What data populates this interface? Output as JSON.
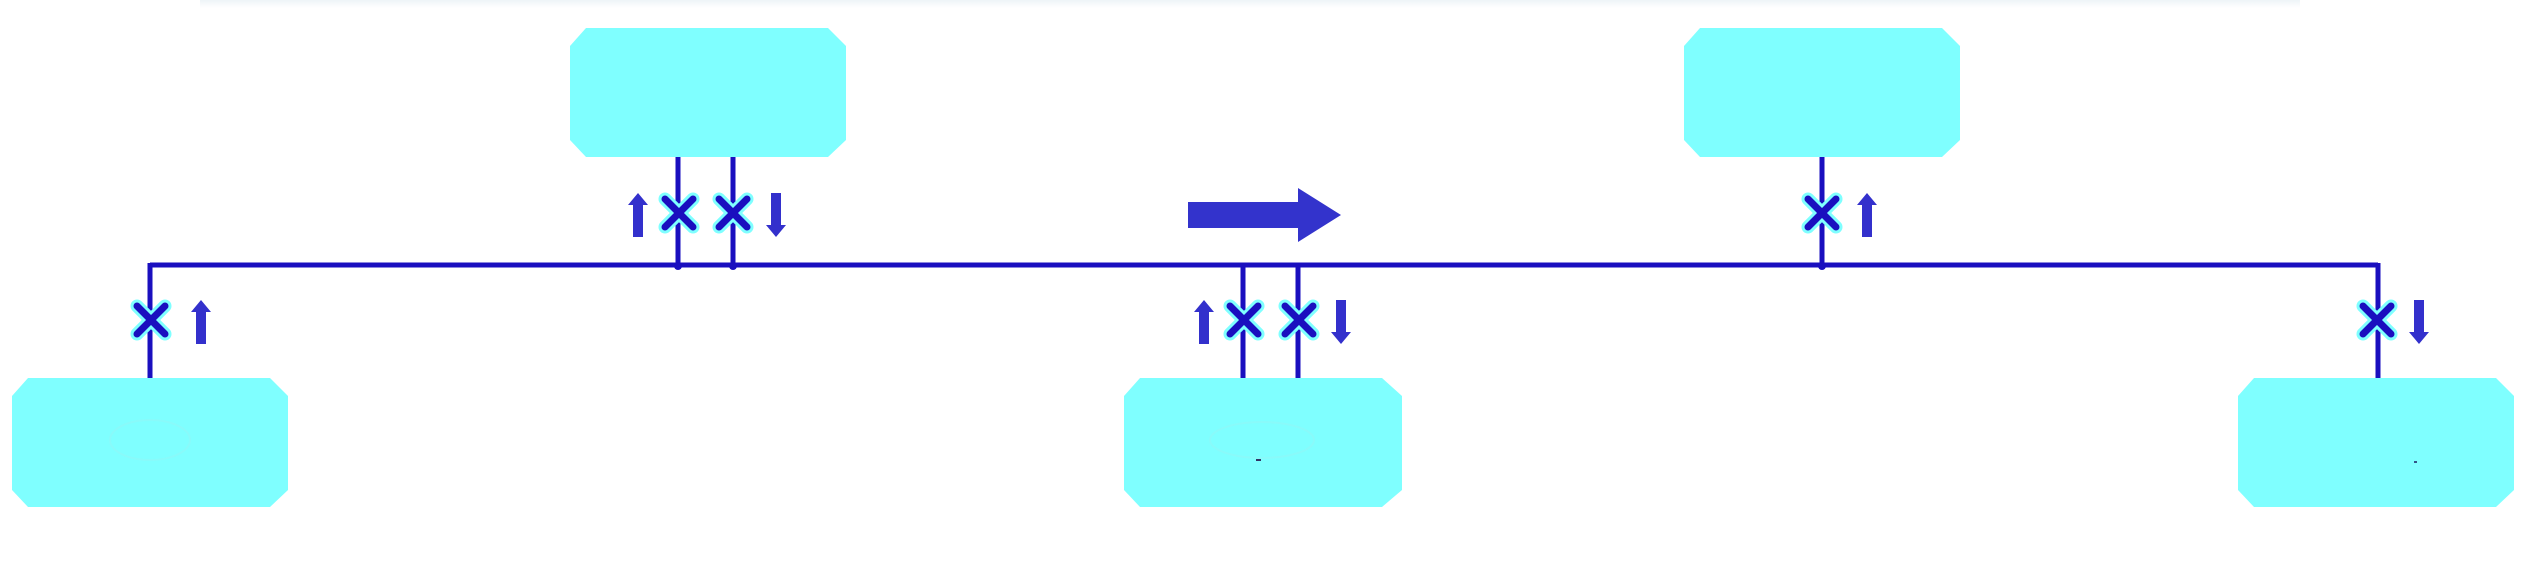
{
  "diagram": {
    "colors": {
      "background": "#ffffff",
      "box_fill": "#7fffff",
      "bus_line": "#1a0fbf",
      "x_marker": "#1a0fbf",
      "x_marker_halo": "#7fffff",
      "arrow_fill": "#3330cc",
      "flow_arrow": "#3333cc"
    },
    "nodes": [
      {
        "id": "top-left-node",
        "label": ""
      },
      {
        "id": "top-right-node",
        "label": ""
      },
      {
        "id": "bottom-left-node",
        "label": ""
      },
      {
        "id": "bottom-center-node",
        "label": ""
      },
      {
        "id": "bottom-right-node",
        "label": ""
      }
    ],
    "flow_direction": "right",
    "connectors": [
      {
        "node": "top-left-node",
        "blocked": true,
        "arrow": "up"
      },
      {
        "node": "top-left-node",
        "blocked": true,
        "arrow": "down"
      },
      {
        "node": "top-right-node",
        "blocked": true,
        "arrow": "up"
      },
      {
        "node": "bottom-left-node",
        "blocked": true,
        "arrow": "up"
      },
      {
        "node": "bottom-center-node",
        "blocked": true,
        "arrow": "up"
      },
      {
        "node": "bottom-center-node",
        "blocked": true,
        "arrow": "down"
      },
      {
        "node": "bottom-right-node",
        "blocked": true,
        "arrow": "down"
      }
    ]
  }
}
